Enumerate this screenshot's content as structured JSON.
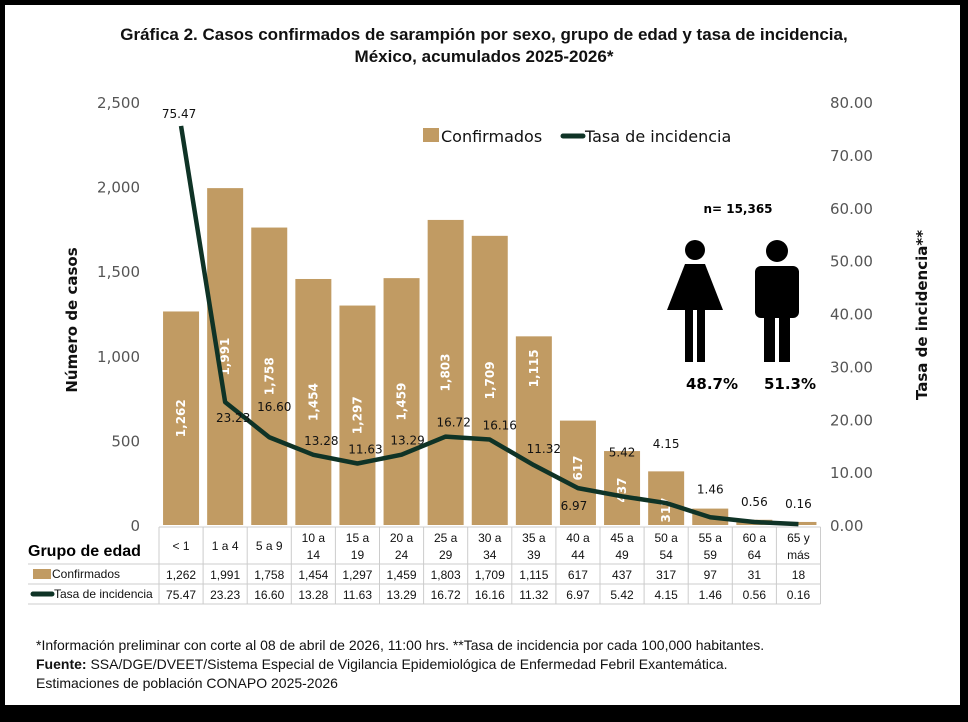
{
  "chart_data": {
    "type": "bar",
    "title": "Gráfica 2. Casos confirmados  de sarampión por sexo, grupo de edad y tasa de incidencia,",
    "subtitle": "México, acumulados 2025-2026*",
    "xlabel": "Grupo de edad",
    "ylabel": "Número de casos",
    "y2label": "Tasa de incidencia**",
    "ylim": [
      0,
      2500
    ],
    "y2lim": [
      0,
      80
    ],
    "yticks": [
      "0",
      "500",
      "1,000",
      "1,500",
      "2,000",
      "2,500"
    ],
    "y2ticks": [
      "0.00",
      "10.00",
      "20.00",
      "30.00",
      "40.00",
      "50.00",
      "60.00",
      "70.00",
      "80.00"
    ],
    "categories": [
      [
        "< 1"
      ],
      [
        "1 a 4"
      ],
      [
        "5 a 9"
      ],
      [
        "10 a",
        "14"
      ],
      [
        "15 a",
        "19"
      ],
      [
        "20 a",
        "24"
      ],
      [
        "25 a",
        "29"
      ],
      [
        "30 a",
        "34"
      ],
      [
        "35 a",
        "39"
      ],
      [
        "40 a",
        "44"
      ],
      [
        "45 a",
        "49"
      ],
      [
        "50 a",
        "54"
      ],
      [
        "55 a",
        "59"
      ],
      [
        "60 a",
        "64"
      ],
      [
        "65 y",
        "más"
      ]
    ],
    "series": [
      {
        "name": "Confirmados",
        "type": "bar",
        "axis": "left",
        "color": "#C19B63",
        "values": [
          1262,
          1991,
          1758,
          1454,
          1297,
          1459,
          1803,
          1709,
          1115,
          617,
          437,
          317,
          97,
          31,
          18
        ],
        "labels": [
          "1,262",
          "1,991",
          "1,758",
          "1,454",
          "1,297",
          "1,459",
          "1,803",
          "1,709",
          "1,115",
          "617",
          "437",
          "317",
          "97",
          "31",
          "18"
        ]
      },
      {
        "name": "Tasa de incidencia",
        "type": "line",
        "axis": "right",
        "color": "#0F3326",
        "values": [
          75.47,
          23.23,
          16.6,
          13.28,
          11.63,
          13.29,
          16.72,
          16.16,
          11.32,
          6.97,
          5.42,
          4.15,
          1.46,
          0.56,
          0.16
        ],
        "labels": [
          "75.47",
          "23.23",
          "16.60",
          "13.28",
          "11.63",
          "13.29",
          "16.72",
          "16.16",
          "11.32",
          "6.97",
          "5.42",
          "4.15",
          "1.46",
          "0.56",
          "0.16"
        ]
      }
    ],
    "legend": "top-center",
    "grid": false,
    "annotation": {
      "n": "n= 15,365",
      "female_pct": "48.7%",
      "male_pct": "51.3%"
    }
  },
  "notes": {
    "line1": "*Información preliminar con corte al 08 de abril de 2026, 11:00 hrs. **Tasa de incidencia por cada 100,000 habitantes.",
    "source_label": "Fuente:",
    "source": " SSA/DGE/DVEET/Sistema Especial de Vigilancia Epidemiológica de Enfermedad Febril Exantemática.",
    "line3": "Estimaciones de población CONAPO 2025-2026"
  }
}
